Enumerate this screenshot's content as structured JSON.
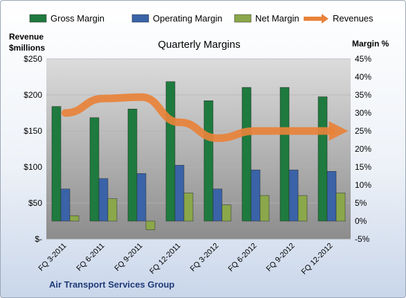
{
  "chart_data": {
    "type": "bar",
    "title": "Quarterly Margins",
    "categories": [
      "FQ 3-2011",
      "FQ 6-2011",
      "FQ 9-2011",
      "FQ 12-2011",
      "FQ 3-2012",
      "FQ 6-2012",
      "FQ 9-2012",
      "FQ 12-2012"
    ],
    "series": [
      {
        "name": "Gross Margin",
        "axis": "right",
        "type": "bar",
        "values": [
          31.8,
          28.7,
          31.1,
          38.7,
          33.4,
          37.1,
          37.1,
          34.5
        ]
      },
      {
        "name": "Operating Margin",
        "axis": "right",
        "type": "bar",
        "values": [
          8.9,
          11.8,
          13.2,
          15.5,
          8.9,
          14.2,
          14.2,
          13.8
        ]
      },
      {
        "name": "Net Margin",
        "axis": "right",
        "type": "bar",
        "values": [
          1.5,
          6.2,
          -2.4,
          7.8,
          4.5,
          7.1,
          7.1,
          7.8
        ]
      },
      {
        "name": "Revenues",
        "axis": "left",
        "type": "line",
        "values": [
          175,
          195,
          197,
          162,
          140,
          150,
          150,
          150
        ]
      }
    ],
    "left_axis": {
      "label_line1": "Revenue",
      "label_line2": "$millions",
      "min": 0,
      "max": 250,
      "ticks": [
        {
          "v": 250,
          "t": "$250"
        },
        {
          "v": 200,
          "t": "$200"
        },
        {
          "v": 150,
          "t": "$150"
        },
        {
          "v": 100,
          "t": "$100"
        },
        {
          "v": 50,
          "t": "$50"
        },
        {
          "v": 0,
          "t": "$-"
        }
      ]
    },
    "right_axis": {
      "label": "Margin %",
      "min": -5,
      "max": 45,
      "ticks": [
        {
          "v": 45,
          "t": "45%"
        },
        {
          "v": 40,
          "t": "40%"
        },
        {
          "v": 35,
          "t": "35%"
        },
        {
          "v": 30,
          "t": "30%"
        },
        {
          "v": 25,
          "t": "25%"
        },
        {
          "v": 20,
          "t": "20%"
        },
        {
          "v": 15,
          "t": "15%"
        },
        {
          "v": 10,
          "t": "10%"
        },
        {
          "v": 5,
          "t": "5%"
        },
        {
          "v": 0,
          "t": "0%"
        },
        {
          "v": -5,
          "t": "-5%"
        }
      ]
    },
    "grid": true,
    "legend_position": "top",
    "colors": {
      "gross": "#1e7a3e",
      "operating": "#3a63a8",
      "net": "#8aa84a",
      "revenues": "#e8823a",
      "plot_top": "#dcdcdc",
      "plot_bottom": "#8c8c8c"
    }
  },
  "footer": {
    "company": "Air Transport  Services Group"
  }
}
